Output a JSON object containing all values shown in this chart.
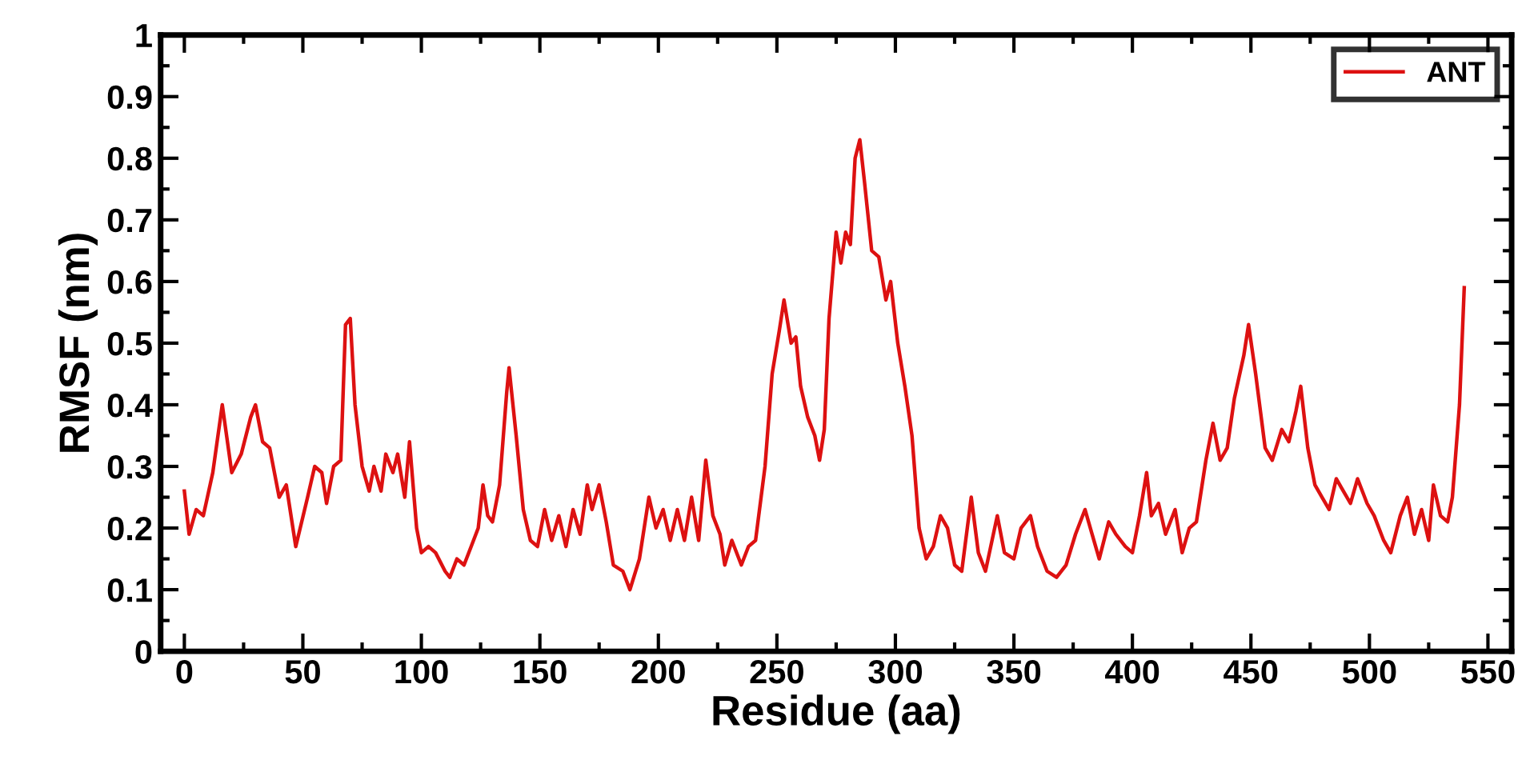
{
  "chart_data": {
    "type": "line",
    "xlabel": "Residue (aa)",
    "ylabel": "RMSF (nm)",
    "xlim": [
      -10,
      560
    ],
    "xticks": [
      0,
      50,
      100,
      150,
      200,
      250,
      300,
      350,
      400,
      450,
      500,
      550
    ],
    "ylim": [
      0,
      1
    ],
    "yticks": [
      0,
      0.1,
      0.2,
      0.3,
      0.4,
      0.5,
      0.6,
      0.7,
      0.8,
      0.9,
      1
    ],
    "grid": false,
    "legend": "top right",
    "marker": "none",
    "line_style": "solid",
    "series": [
      {
        "name": "ANT",
        "color": "#dd1111",
        "x": [
          0,
          2,
          5,
          8,
          12,
          16,
          20,
          24,
          28,
          30,
          33,
          36,
          40,
          43,
          47,
          52,
          55,
          58,
          60,
          63,
          66,
          68,
          70,
          72,
          75,
          78,
          80,
          83,
          85,
          88,
          90,
          93,
          95,
          98,
          100,
          103,
          106,
          110,
          112,
          115,
          118,
          121,
          124,
          126,
          128,
          130,
          133,
          136,
          137,
          140,
          143,
          146,
          149,
          152,
          155,
          158,
          161,
          164,
          167,
          170,
          172,
          175,
          178,
          181,
          185,
          188,
          192,
          196,
          199,
          202,
          205,
          208,
          211,
          214,
          217,
          220,
          223,
          226,
          228,
          231,
          235,
          238,
          241,
          245,
          248,
          251,
          253,
          256,
          258,
          260,
          263,
          266,
          268,
          270,
          272,
          275,
          277,
          279,
          281,
          283,
          285,
          287,
          290,
          293,
          296,
          298,
          301,
          304,
          307,
          310,
          313,
          316,
          319,
          322,
          325,
          328,
          332,
          335,
          338,
          343,
          346,
          350,
          353,
          357,
          360,
          364,
          368,
          372,
          376,
          380,
          383,
          386,
          390,
          393,
          397,
          400,
          403,
          406,
          408,
          411,
          414,
          418,
          421,
          424,
          427,
          431,
          434,
          437,
          440,
          443,
          447,
          449,
          452,
          456,
          459,
          463,
          466,
          469,
          471,
          474,
          477,
          480,
          483,
          486,
          489,
          492,
          495,
          499,
          502,
          506,
          509,
          513,
          516,
          519,
          522,
          525,
          527,
          530,
          533,
          535,
          538,
          540
        ],
        "values": [
          0.26,
          0.19,
          0.23,
          0.22,
          0.29,
          0.4,
          0.29,
          0.32,
          0.38,
          0.4,
          0.34,
          0.33,
          0.25,
          0.27,
          0.17,
          0.25,
          0.3,
          0.29,
          0.24,
          0.3,
          0.31,
          0.53,
          0.54,
          0.4,
          0.3,
          0.26,
          0.3,
          0.26,
          0.32,
          0.29,
          0.32,
          0.25,
          0.34,
          0.2,
          0.16,
          0.17,
          0.16,
          0.13,
          0.12,
          0.15,
          0.14,
          0.17,
          0.2,
          0.27,
          0.22,
          0.21,
          0.27,
          0.42,
          0.46,
          0.35,
          0.23,
          0.18,
          0.17,
          0.23,
          0.18,
          0.22,
          0.17,
          0.23,
          0.19,
          0.27,
          0.23,
          0.27,
          0.21,
          0.14,
          0.13,
          0.1,
          0.15,
          0.25,
          0.2,
          0.23,
          0.18,
          0.23,
          0.18,
          0.25,
          0.18,
          0.31,
          0.22,
          0.19,
          0.14,
          0.18,
          0.14,
          0.17,
          0.18,
          0.3,
          0.45,
          0.52,
          0.57,
          0.5,
          0.51,
          0.43,
          0.38,
          0.35,
          0.31,
          0.36,
          0.54,
          0.68,
          0.63,
          0.68,
          0.66,
          0.8,
          0.83,
          0.76,
          0.65,
          0.64,
          0.57,
          0.6,
          0.5,
          0.43,
          0.35,
          0.2,
          0.15,
          0.17,
          0.22,
          0.2,
          0.14,
          0.13,
          0.25,
          0.16,
          0.13,
          0.22,
          0.16,
          0.15,
          0.2,
          0.22,
          0.17,
          0.13,
          0.12,
          0.14,
          0.19,
          0.23,
          0.19,
          0.15,
          0.21,
          0.19,
          0.17,
          0.16,
          0.22,
          0.29,
          0.22,
          0.24,
          0.19,
          0.23,
          0.16,
          0.2,
          0.21,
          0.31,
          0.37,
          0.31,
          0.33,
          0.41,
          0.48,
          0.53,
          0.45,
          0.33,
          0.31,
          0.36,
          0.34,
          0.39,
          0.43,
          0.33,
          0.27,
          0.25,
          0.23,
          0.28,
          0.26,
          0.24,
          0.28,
          0.24,
          0.22,
          0.18,
          0.16,
          0.22,
          0.25,
          0.19,
          0.23,
          0.18,
          0.27,
          0.22,
          0.21,
          0.25,
          0.4,
          0.59
        ]
      }
    ]
  }
}
